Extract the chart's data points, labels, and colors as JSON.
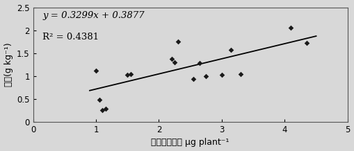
{
  "scatter_x": [
    1.0,
    1.05,
    1.1,
    1.15,
    1.5,
    1.55,
    2.2,
    2.25,
    2.3,
    2.55,
    2.65,
    2.75,
    3.0,
    3.15,
    3.3,
    4.1,
    4.35
  ],
  "scatter_y": [
    1.12,
    0.48,
    0.25,
    0.28,
    1.03,
    1.05,
    1.38,
    1.3,
    1.75,
    0.93,
    1.28,
    1.0,
    1.03,
    1.57,
    1.05,
    2.05,
    1.72
  ],
  "slope": 0.3299,
  "intercept": 0.3877,
  "equation": "y = 0.3299x + 0.3877",
  "r2_label": "R² = 0.4381",
  "xlim": [
    0,
    5
  ],
  "ylim": [
    0,
    2.5
  ],
  "xticks": [
    0,
    1,
    2,
    3,
    4,
    5
  ],
  "yticks": [
    0,
    0.5,
    1.0,
    1.5,
    2.0,
    2.5
  ],
  "xlabel": "氨基酸吸收量 μg plant⁻¹",
  "ylabel": "全氮(g kg⁻¹)",
  "marker_color": "#1a1a1a",
  "line_color": "#000000",
  "bg_color": "#d8d8d8",
  "plot_bg": "#d8d8d8",
  "eq_fontsize": 9.5,
  "label_fontsize": 9,
  "tick_fontsize": 8.5,
  "line_x_start": 0.9,
  "line_x_end": 4.5
}
